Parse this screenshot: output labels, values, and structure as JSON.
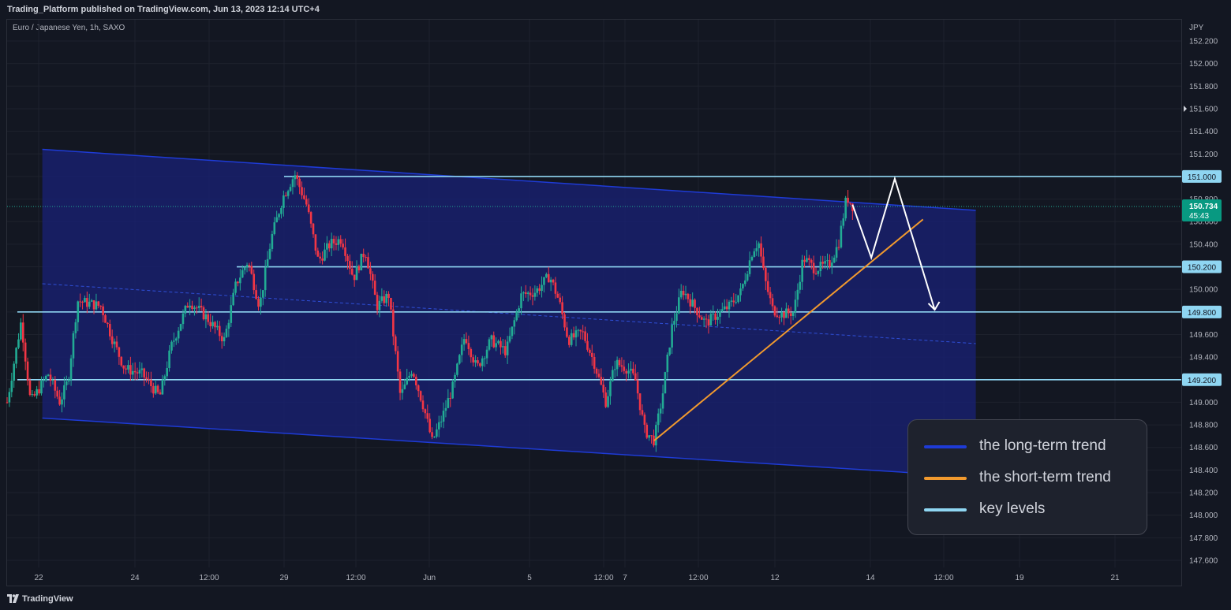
{
  "header": {
    "published": "Trading_Platform published on TradingView.com, Jun 13, 2023 12:14 UTC+4"
  },
  "symbol": {
    "label": "Euro / Japanese Yen, 1h, SAXO"
  },
  "footer": {
    "brand": "TradingView"
  },
  "colors": {
    "long_term_trend": "#1e3bd6",
    "short_term_trend": "#f29a2e",
    "key_levels": "#8fd6f2",
    "candle_up": "#22ab94",
    "candle_down": "#f23645",
    "price_badge": "#089981"
  },
  "legend": [
    {
      "label": "the long-term trend",
      "color": "#1e3bd6"
    },
    {
      "label": "the short-term trend",
      "color": "#f29a2e"
    },
    {
      "label": "key levels",
      "color": "#8fd6f2"
    }
  ],
  "chart_data": {
    "type": "candlestick",
    "currency": "JPY",
    "ylim": [
      147.5,
      152.3
    ],
    "y_ticks": [
      "152.200",
      "152.000",
      "151.800",
      "151.600",
      "151.400",
      "151.200",
      "151.000",
      "150.800",
      "150.600",
      "150.400",
      "150.200",
      "150.000",
      "149.800",
      "149.600",
      "149.400",
      "149.200",
      "149.000",
      "148.800",
      "148.600",
      "148.400",
      "148.200",
      "148.000",
      "147.800",
      "147.600"
    ],
    "x_ticks": [
      "22",
      "24",
      "12:00",
      "29",
      "12:00",
      "Jun",
      "5",
      "12:00",
      "7",
      "12:00",
      "12",
      "14",
      "12:00",
      "19",
      "21"
    ],
    "key_levels": [
      {
        "price": 151.0,
        "label": "151.000"
      },
      {
        "price": 150.2,
        "label": "150.200"
      },
      {
        "price": 149.8,
        "label": "149.800"
      },
      {
        "price": 149.2,
        "label": "149.200"
      }
    ],
    "current_price": {
      "label": "150.734",
      "countdown": "45:43"
    },
    "marker_price": "151.600",
    "channel": {
      "upper": [
        [
          0.03,
          151.24
        ],
        [
          0.825,
          150.7
        ]
      ],
      "lower": [
        [
          0.03,
          148.86
        ],
        [
          0.825,
          148.34
        ]
      ]
    },
    "short_trend": [
      [
        0.551,
        148.66
      ],
      [
        0.78,
        150.62
      ]
    ],
    "projection": [
      [
        0.72,
        150.75
      ],
      [
        0.736,
        150.28
      ],
      [
        0.756,
        150.98
      ],
      [
        0.79,
        149.82
      ]
    ],
    "price_path": [
      [
        0.0,
        149.0
      ],
      [
        0.012,
        149.72
      ],
      [
        0.02,
        149.0
      ],
      [
        0.035,
        149.25
      ],
      [
        0.045,
        149.0
      ],
      [
        0.052,
        149.2
      ],
      [
        0.06,
        149.9
      ],
      [
        0.08,
        149.85
      ],
      [
        0.09,
        149.55
      ],
      [
        0.1,
        149.3
      ],
      [
        0.115,
        149.25
      ],
      [
        0.13,
        149.05
      ],
      [
        0.14,
        149.5
      ],
      [
        0.155,
        149.9
      ],
      [
        0.17,
        149.75
      ],
      [
        0.185,
        149.55
      ],
      [
        0.195,
        150.05
      ],
      [
        0.205,
        150.25
      ],
      [
        0.215,
        149.85
      ],
      [
        0.225,
        150.45
      ],
      [
        0.235,
        150.82
      ],
      [
        0.245,
        151.02
      ],
      [
        0.255,
        150.75
      ],
      [
        0.265,
        150.25
      ],
      [
        0.275,
        150.4
      ],
      [
        0.285,
        150.45
      ],
      [
        0.295,
        150.1
      ],
      [
        0.305,
        150.35
      ],
      [
        0.315,
        149.85
      ],
      [
        0.325,
        149.95
      ],
      [
        0.335,
        149.05
      ],
      [
        0.345,
        149.3
      ],
      [
        0.355,
        148.95
      ],
      [
        0.362,
        148.65
      ],
      [
        0.37,
        148.85
      ],
      [
        0.38,
        149.15
      ],
      [
        0.39,
        149.6
      ],
      [
        0.4,
        149.3
      ],
      [
        0.412,
        149.55
      ],
      [
        0.425,
        149.45
      ],
      [
        0.438,
        149.95
      ],
      [
        0.45,
        149.98
      ],
      [
        0.462,
        150.12
      ],
      [
        0.47,
        149.9
      ],
      [
        0.478,
        149.55
      ],
      [
        0.49,
        149.62
      ],
      [
        0.5,
        149.35
      ],
      [
        0.51,
        149.0
      ],
      [
        0.518,
        149.35
      ],
      [
        0.528,
        149.3
      ],
      [
        0.535,
        149.2
      ],
      [
        0.543,
        148.75
      ],
      [
        0.551,
        148.66
      ],
      [
        0.558,
        149.05
      ],
      [
        0.566,
        149.65
      ],
      [
        0.575,
        150.0
      ],
      [
        0.585,
        149.85
      ],
      [
        0.595,
        149.7
      ],
      [
        0.605,
        149.78
      ],
      [
        0.615,
        149.85
      ],
      [
        0.625,
        149.98
      ],
      [
        0.635,
        150.35
      ],
      [
        0.64,
        150.42
      ],
      [
        0.645,
        150.1
      ],
      [
        0.652,
        149.82
      ],
      [
        0.66,
        149.78
      ],
      [
        0.67,
        149.8
      ],
      [
        0.678,
        150.28
      ],
      [
        0.688,
        150.18
      ],
      [
        0.7,
        150.22
      ],
      [
        0.708,
        150.4
      ],
      [
        0.715,
        150.82
      ],
      [
        0.72,
        150.74
      ]
    ]
  }
}
